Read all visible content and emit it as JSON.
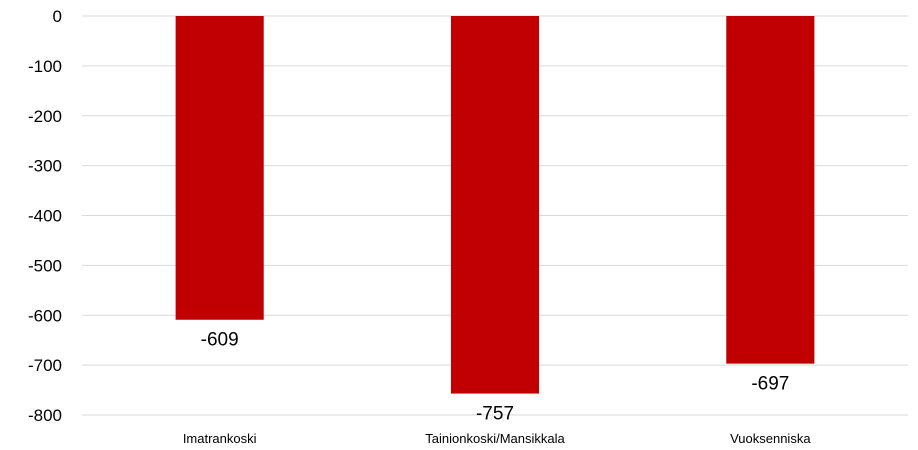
{
  "chart_data": {
    "type": "bar",
    "categories": [
      "Imatrankoski",
      "Tainionkoski/Mansikkala",
      "Vuoksenniska"
    ],
    "values": [
      -609,
      -757,
      -697
    ],
    "data_labels": [
      "-609",
      "-757",
      "-697"
    ],
    "yticks": [
      0,
      -100,
      -200,
      -300,
      -400,
      -500,
      -600,
      -700,
      -800
    ],
    "ylim": [
      -800,
      0
    ],
    "grid": true,
    "bar_color": "#C00000",
    "legend": "none"
  }
}
